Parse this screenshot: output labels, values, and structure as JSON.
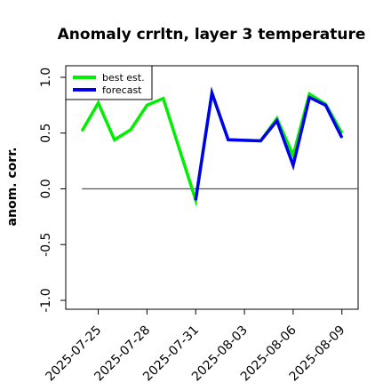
{
  "chart_data": {
    "type": "line",
    "title": "Anomaly crrltn, layer 3 temperature",
    "ylabel": "anom. corr.",
    "xlabel": "",
    "ylim": [
      -1.0,
      1.0
    ],
    "xlim": [
      "2025-07-23",
      "2025-08-10"
    ],
    "yticks": [
      "-1.0",
      "-0.5",
      "0.0",
      "0.5",
      "1.0"
    ],
    "ytick_values": [
      -1.0,
      -0.5,
      0.0,
      0.5,
      1.0
    ],
    "xticks": [
      {
        "label": "2025-07-25",
        "date": "2025-07-25",
        "color": "#000000"
      },
      {
        "label": "2025-07-28",
        "date": "2025-07-28",
        "color": "#000000"
      },
      {
        "label": "2025-07-31",
        "date": "2025-07-31",
        "color": "#228B22"
      },
      {
        "label": "2025-08-03",
        "date": "2025-08-03",
        "color": "#000000"
      },
      {
        "label": "2025-08-06",
        "date": "2025-08-06",
        "color": "#000000"
      },
      {
        "label": "2025-08-09",
        "date": "2025-08-09",
        "color": "#000000"
      }
    ],
    "reference_line": {
      "y": 0.0,
      "from": "2025-07-24",
      "to": "2025-08-10",
      "color": "#555555"
    },
    "legend": {
      "placement": "top-left"
    },
    "series": [
      {
        "name": "best est.",
        "color": "#00ee00",
        "x": [
          "2025-07-24",
          "2025-07-25",
          "2025-07-26",
          "2025-07-27",
          "2025-07-28",
          "2025-07-29",
          "2025-07-31",
          "2025-08-01",
          "2025-08-02",
          "2025-08-04",
          "2025-08-05",
          "2025-08-06",
          "2025-08-07",
          "2025-08-08",
          "2025-08-09"
        ],
        "y": [
          0.52,
          0.77,
          0.44,
          0.53,
          0.75,
          0.81,
          -0.1,
          0.86,
          0.44,
          0.43,
          0.63,
          0.3,
          0.85,
          0.76,
          0.5
        ]
      },
      {
        "name": "forecast",
        "color": "#0000ee",
        "x": [
          "2025-07-31",
          "2025-08-01",
          "2025-08-02",
          "2025-08-04",
          "2025-08-05",
          "2025-08-06",
          "2025-08-07",
          "2025-08-08",
          "2025-08-09"
        ],
        "y": [
          -0.1,
          0.86,
          0.44,
          0.43,
          0.61,
          0.21,
          0.82,
          0.75,
          0.46
        ]
      }
    ]
  }
}
